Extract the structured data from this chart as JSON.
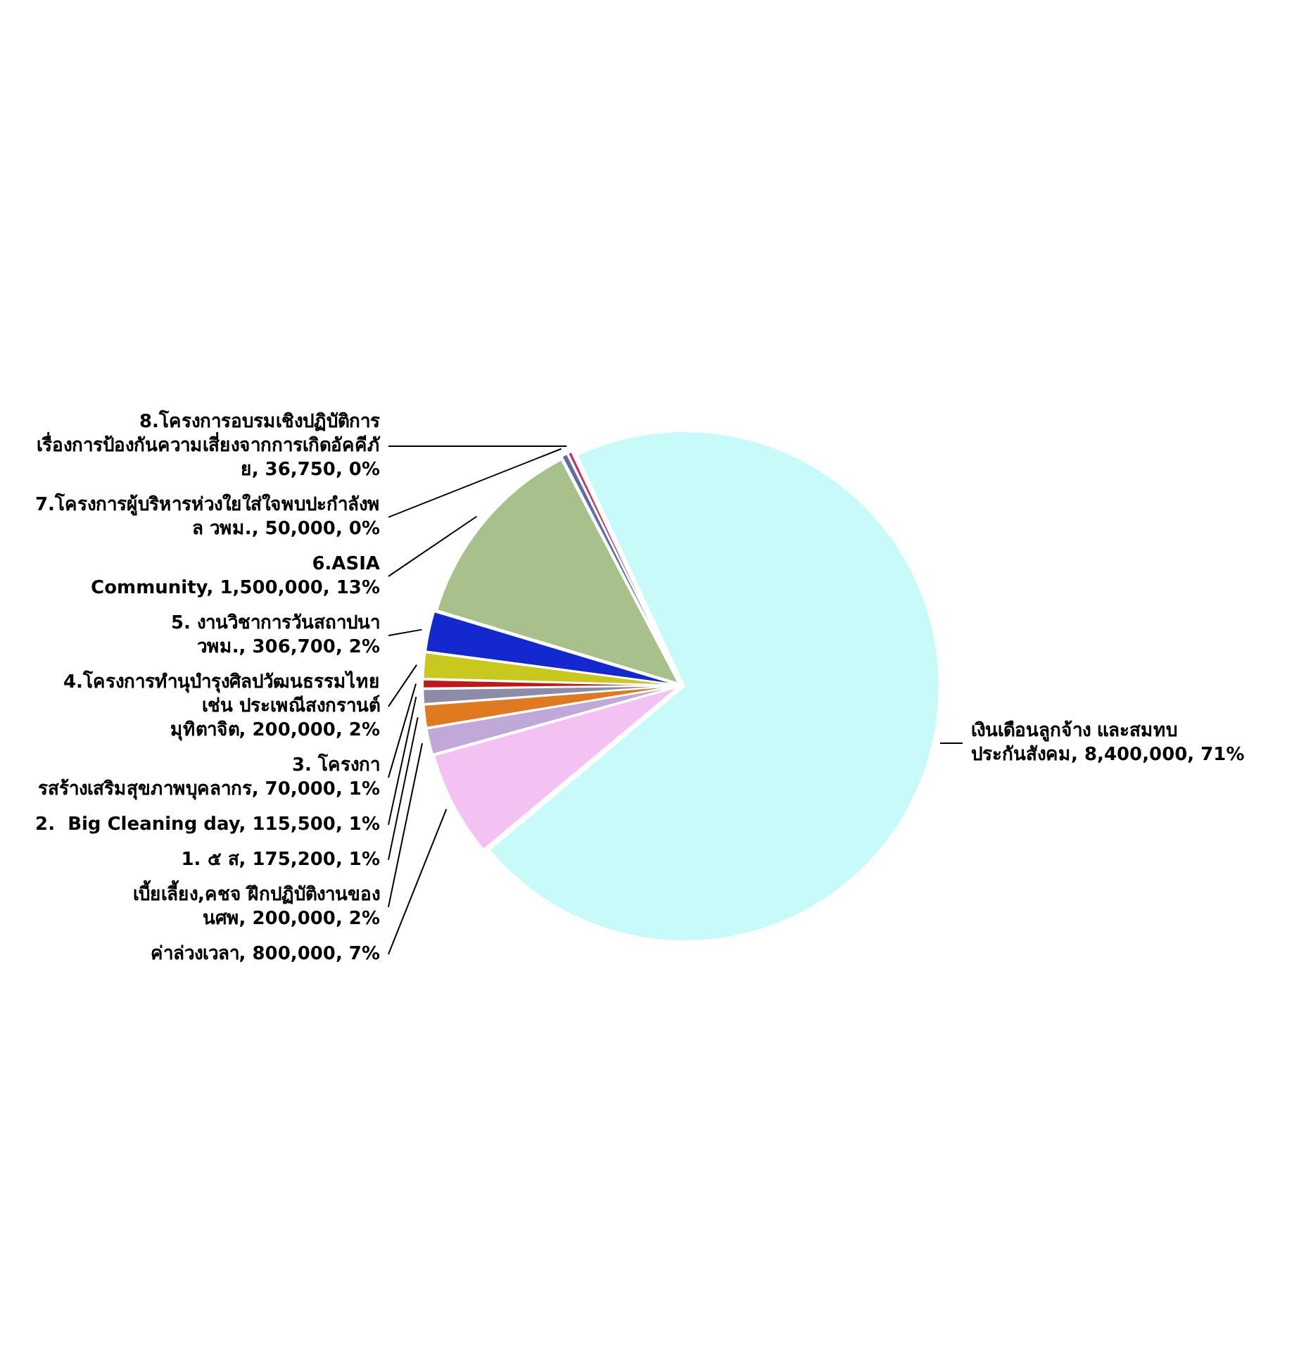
{
  "chart_data": {
    "type": "pie",
    "categories": [
      "เงินเดือนลูกจ้าง และสมทบ ประกันสังคม",
      "ค่าล่วงเวลา",
      "เบี้ยเลี้ยง,คชจ ฝึกปฏิบัติงานของ นศพ",
      "1. ๕ ส",
      "2.  Big Cleaning day",
      "3. โครงการสร้างเสริมสุขภาพบุคลากร",
      "4.โครงการทำนุบำรุงศิลปวัฒนธรรมไทย เช่น ประเพณีสงกรานต์ มุทิตาจิต",
      "5. งานวิชาการวันสถาปนา วพม.",
      "6.ASIA Community",
      "7.โครงการผู้บริหารห่วงใยใส่ใจพบปะกำลังพล วพม.",
      "8.โครงการอบรมเชิงปฏิบัติการ เรื่องการป้องกันความเสี่ยงจากการเกิดอัคคีภัย"
    ],
    "values": [
      8400000,
      800000,
      200000,
      175200,
      115500,
      70000,
      200000,
      306700,
      1500000,
      50000,
      36750
    ],
    "value_labels": [
      "8,400,000, 71%",
      "800,000, 7%",
      "200,000, 2%",
      "175,200, 1%",
      "115,500, 1%",
      "70,000, 1%",
      "200,000, 2%",
      "306,700, 2%",
      "1,500,000, 13%",
      "50,000, 0%",
      "36,750, 0%"
    ],
    "colors": [
      "#c8fafa",
      "#f4c2f2",
      "#c0a8d8",
      "#e07a20",
      "#8c8ca8",
      "#c01818",
      "#c8c81e",
      "#1428d0",
      "#a8c08c",
      "#5a6eaa",
      "#c8305a"
    ],
    "legend": false
  }
}
